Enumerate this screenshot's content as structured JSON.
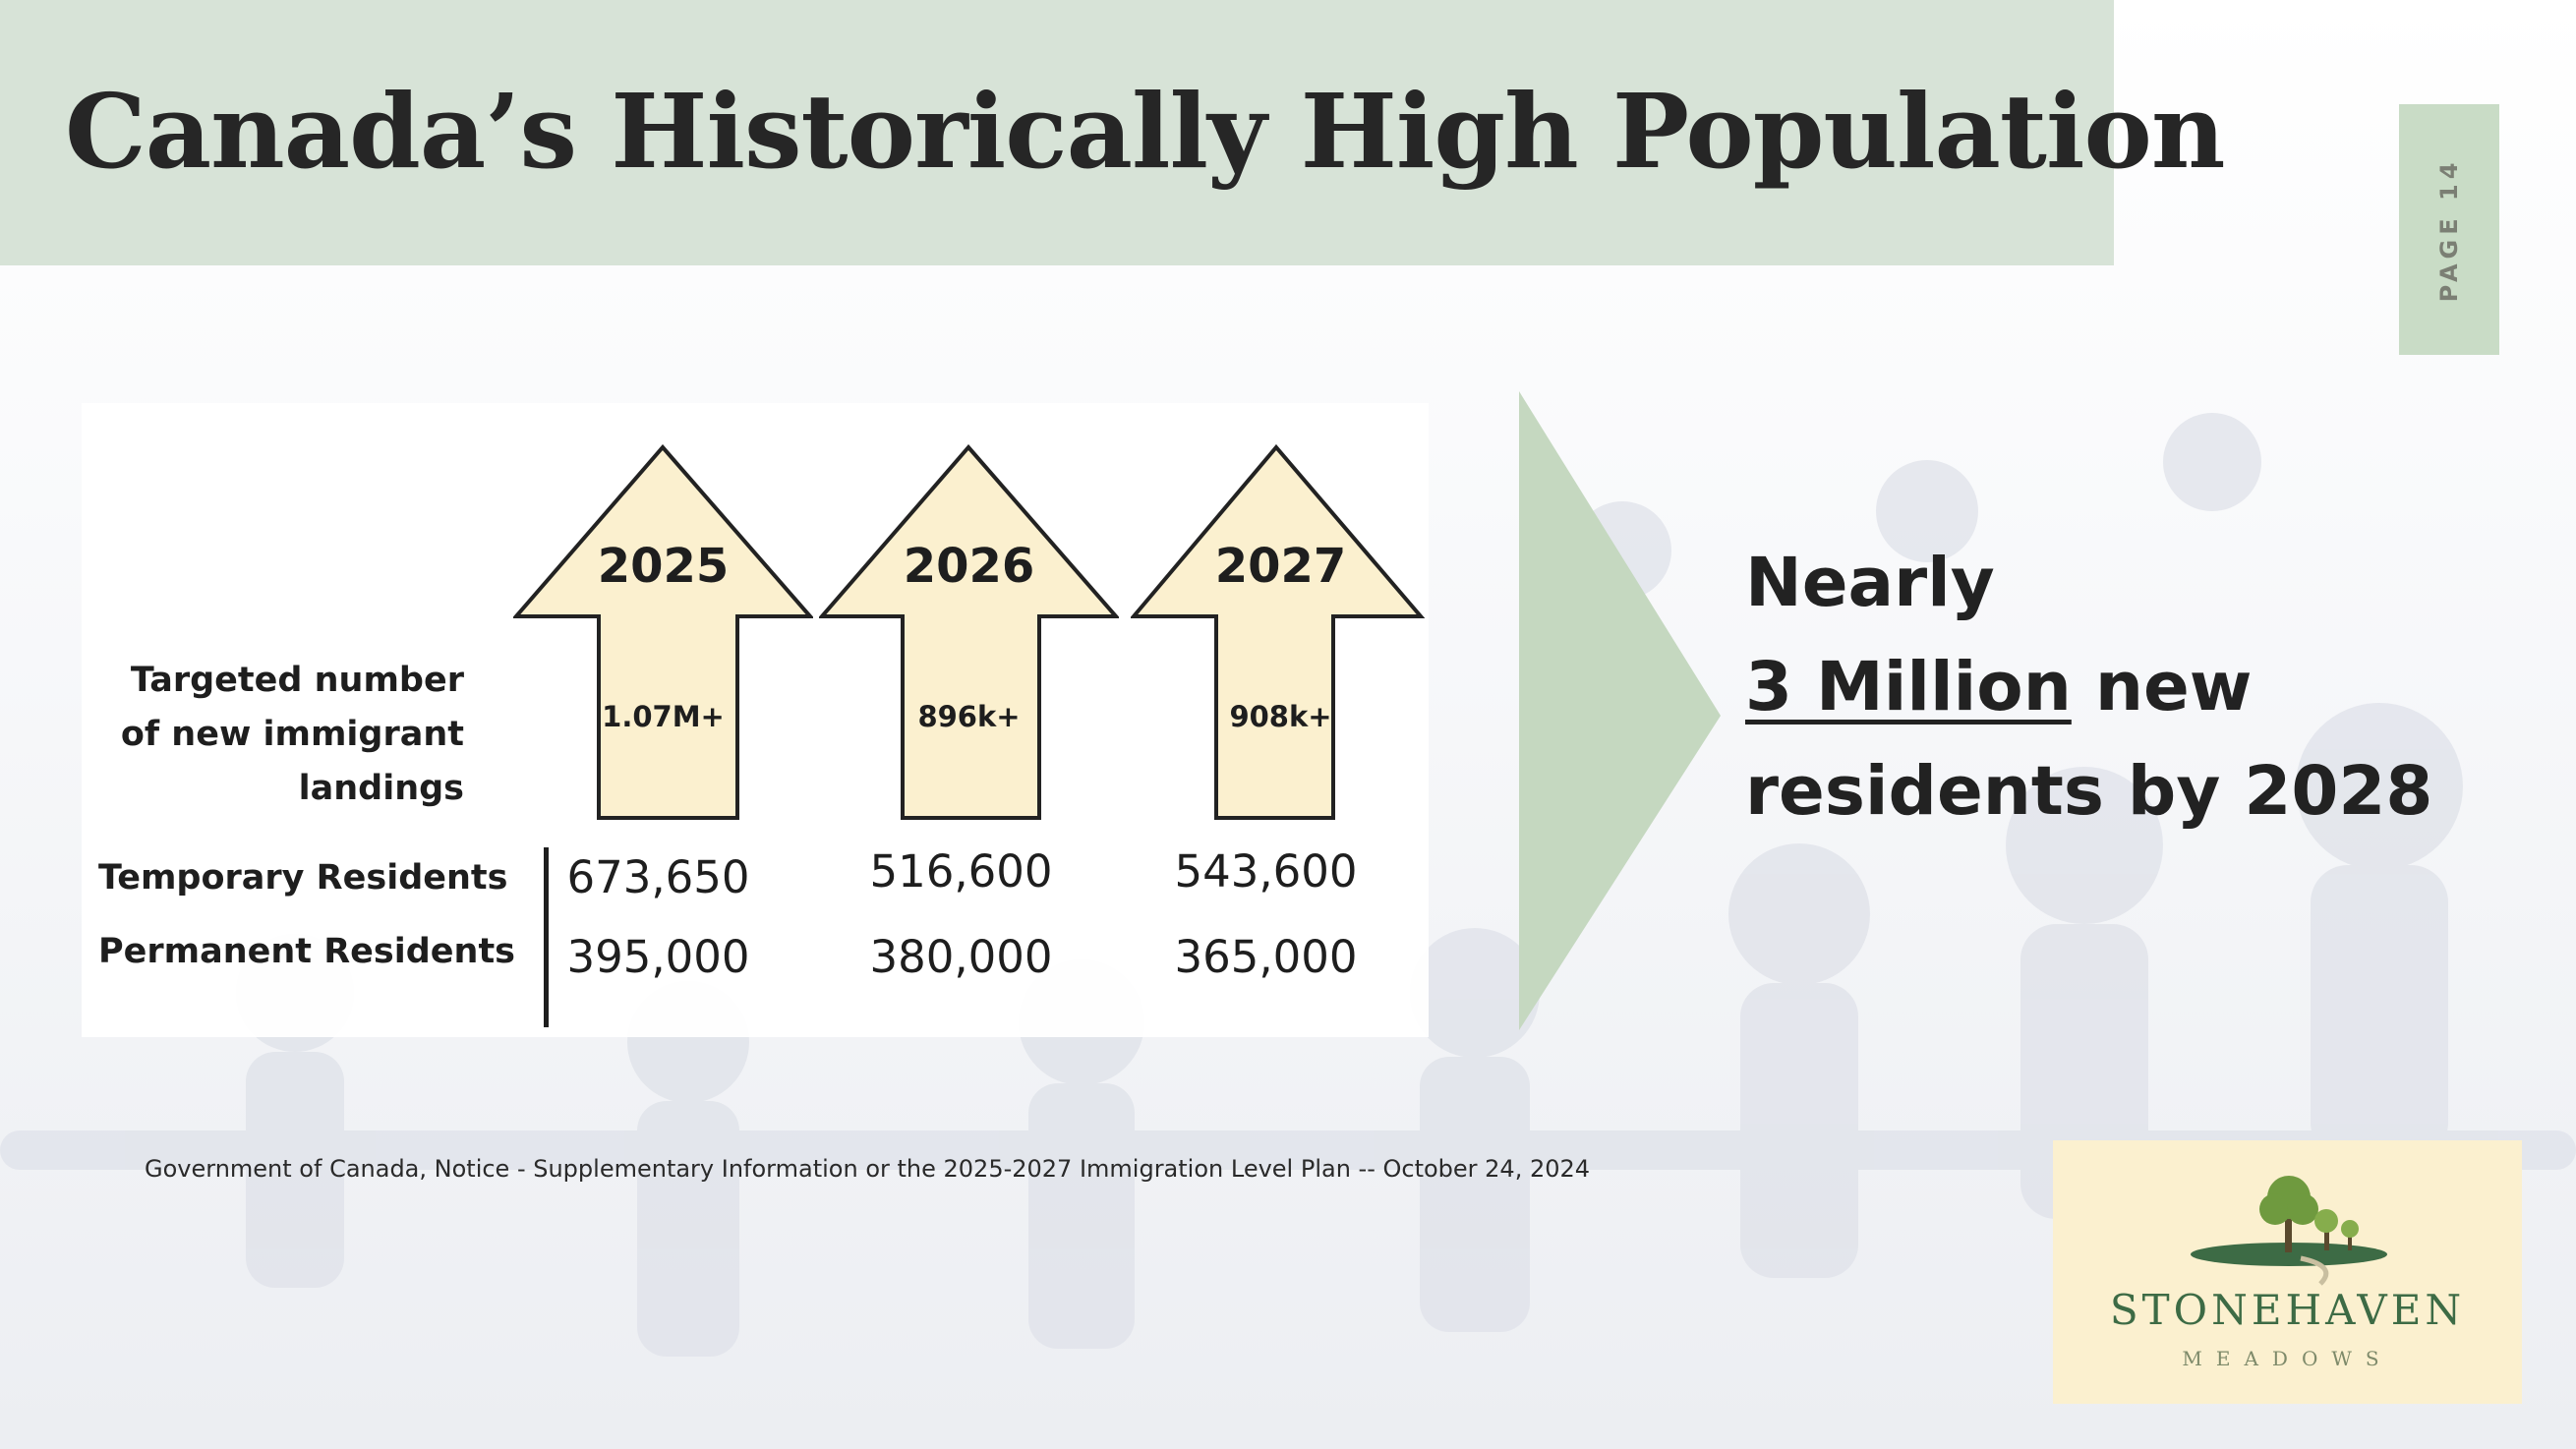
{
  "title": "Canada’s Historically High Population",
  "page_label": "PAGE 14",
  "row_labels": {
    "targeted": "Targeted number of new immigrant landings",
    "temporary": "Temporary Residents",
    "permanent": "Permanent Residents"
  },
  "years": [
    {
      "year": "2025",
      "target": "1.07M+",
      "temporary": "673,650",
      "permanent": "395,000"
    },
    {
      "year": "2026",
      "target": "896k+",
      "temporary": "516,600",
      "permanent": "380,000"
    },
    {
      "year": "2027",
      "target": "908k+",
      "temporary": "543,600",
      "permanent": "365,000"
    }
  ],
  "headline": {
    "line1": "Nearly",
    "highlight": "3 Million",
    "line2_rest": " new",
    "line3": "residents by 2028"
  },
  "source": "Government of Canada, Notice -  Supplementary Information or the 2025-2027 Immigration Level Plan -- October 24, 2024",
  "logo": {
    "name": "STONEHAVEN",
    "sub": "MEADOWS"
  },
  "colors": {
    "title_band": "#d7e3d7",
    "page_tab": "#c9dcc6",
    "arrow_fill": "#fbf0cf",
    "chevron": "#c5d8c0",
    "logo_bg": "#fbf0cf",
    "logo_green": "#3d6b45"
  }
}
